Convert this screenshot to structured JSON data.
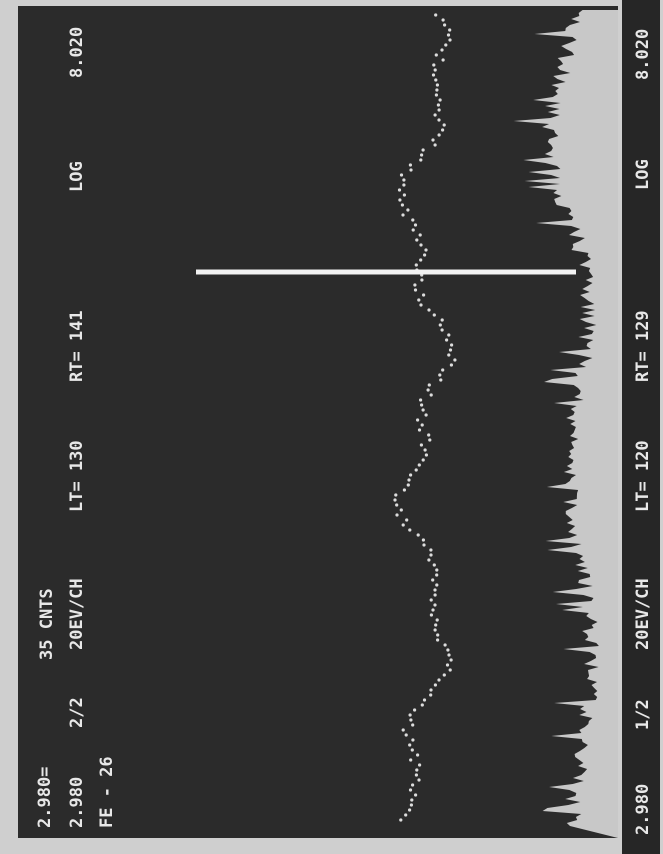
{
  "screen": {
    "left_column": [
      "2.980=",
      "2.980",
      "FE - 26"
    ],
    "counts": "35 CNTS",
    "status_line": [
      "2/2",
      "20EV/CH",
      "LT= 130",
      "RT= 141",
      "LOG",
      "8.020"
    ],
    "bottom_bar": [
      "2.980",
      "1/2",
      "20EV/CH",
      "LT= 120",
      "RT= 129",
      "LOG",
      "8.020"
    ]
  }
}
